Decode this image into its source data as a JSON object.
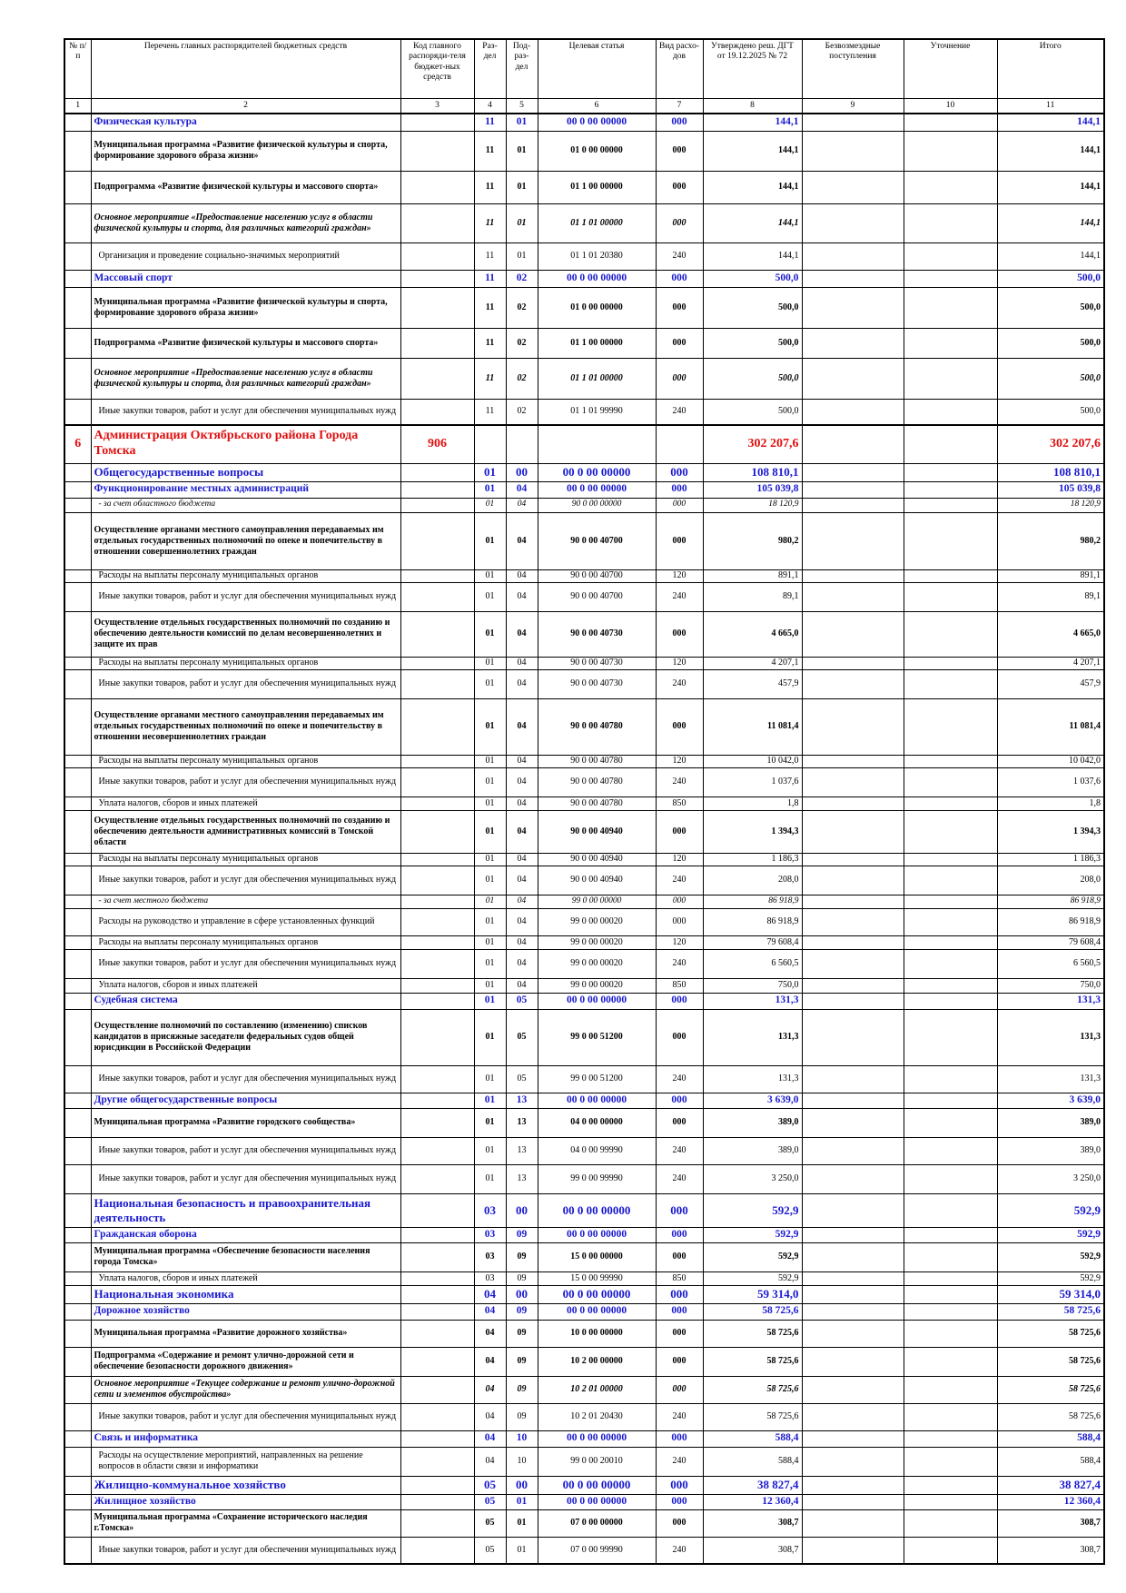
{
  "table": {
    "header": [
      "№ п/п",
      "Перечень главных распорядителей бюджетных средств",
      "Код главного распоряди-теля бюджет-ных средств",
      "Раз-дел",
      "Под-раз-дел",
      "Целевая статья",
      "Вид расхо-дов",
      "Утверждено реш. ДГТ от 19.12.2025 № 72",
      "Безвозмездные поступления",
      "Уточнение",
      "Итого"
    ],
    "column_numbers": [
      1,
      2,
      3,
      4,
      5,
      6,
      7,
      8,
      9,
      10,
      11
    ],
    "rows": [
      {
        "style": "blue",
        "cells": [
          null,
          "Физическая культура",
          null,
          "11",
          "01",
          "00 0 00 00000",
          "000",
          "144,1",
          null,
          null,
          "144,1"
        ]
      },
      {
        "style": "bold",
        "cells": [
          null,
          "Муниципальная программа «Развитие физической культуры и спорта, формирование здорового образа жизни»",
          null,
          "11",
          "01",
          "01 0 00 00000",
          "000",
          "144,1",
          null,
          null,
          "144,1"
        ]
      },
      {
        "style": "bold",
        "cells": [
          null,
          "Подпрограмма «Развитие физической культуры и массового спорта»",
          null,
          "11",
          "01",
          "01 1 00 00000",
          "000",
          "144,1",
          null,
          null,
          "144,1"
        ]
      },
      {
        "style": "bolditalic",
        "cells": [
          null,
          "Основное мероприятие «Предоставление населению услуг в области физической культуры и спорта, для различных категорий граждан»",
          null,
          "11",
          "01",
          "01 1 01 00000",
          "000",
          "144,1",
          null,
          null,
          "144,1"
        ]
      },
      {
        "style": "normal",
        "cells": [
          null,
          "Организация и проведение социально-значимых мероприятий",
          null,
          "11",
          "01",
          "01 1 01 20380",
          "240",
          "144,1",
          null,
          null,
          "144,1"
        ]
      },
      {
        "style": "blue",
        "cells": [
          null,
          "Массовый спорт",
          null,
          "11",
          "02",
          "00 0 00 00000",
          "000",
          "500,0",
          null,
          null,
          "500,0"
        ]
      },
      {
        "style": "bold",
        "cells": [
          null,
          "Муниципальная программа «Развитие физической культуры и спорта, формирование здорового образа жизни»",
          null,
          "11",
          "02",
          "01 0 00 00000",
          "000",
          "500,0",
          null,
          null,
          "500,0"
        ]
      },
      {
        "style": "bold",
        "cells": [
          null,
          "Подпрограмма «Развитие физической культуры и массового спорта»",
          null,
          "11",
          "02",
          "01 1 00 00000",
          "000",
          "500,0",
          null,
          null,
          "500,0"
        ]
      },
      {
        "style": "bolditalic",
        "cells": [
          null,
          "Основное мероприятие «Предоставление населению услуг в области физической культуры и спорта, для различных категорий граждан»",
          null,
          "11",
          "02",
          "01 1 01 00000",
          "000",
          "500,0",
          null,
          null,
          "500,0"
        ]
      },
      {
        "style": "normal",
        "cells": [
          null,
          "Иные закупки товаров, работ и услуг для обеспечения муниципальных нужд",
          null,
          "11",
          "02",
          "01 1 01 99990",
          "240",
          "500,0",
          null,
          null,
          "500,0"
        ]
      },
      {
        "style": "red",
        "cells": [
          "6",
          "Администрация Октябрьского района Города Томска",
          "906",
          null,
          null,
          null,
          null,
          "302 207,6",
          null,
          null,
          "302 207,6"
        ]
      },
      {
        "style": "blue2",
        "cells": [
          null,
          "Общегосударственные вопросы",
          null,
          "01",
          "00",
          "00 0 00 00000",
          "000",
          "108 810,1",
          null,
          null,
          "108 810,1"
        ]
      },
      {
        "style": "blue",
        "cells": [
          null,
          "Функционирование местных администраций",
          null,
          "01",
          "04",
          "00 0 00 00000",
          "000",
          "105 039,8",
          null,
          null,
          "105 039,8"
        ]
      },
      {
        "style": "italic",
        "cells": [
          null,
          "- за счет областного бюджета",
          null,
          "01",
          "04",
          "90 0 00 00000",
          "000",
          "18 120,9",
          null,
          null,
          "18 120,9"
        ]
      },
      {
        "style": "bold",
        "cells": [
          null,
          "Осуществление органами местного самоуправления передаваемых им отдельных государственных полномочий по опеке и попечительству в отношении совершеннолетних граждан",
          null,
          "01",
          "04",
          "90 0 00 40700",
          "000",
          "980,2",
          null,
          null,
          "980,2"
        ]
      },
      {
        "style": "normal",
        "cells": [
          null,
          "Расходы на выплаты персоналу муниципальных органов",
          null,
          "01",
          "04",
          "90 0 00 40700",
          "120",
          "891,1",
          null,
          null,
          "891,1"
        ]
      },
      {
        "style": "normal",
        "cells": [
          null,
          "Иные закупки товаров, работ и услуг для обеспечения муниципальных нужд",
          null,
          "01",
          "04",
          "90 0 00 40700",
          "240",
          "89,1",
          null,
          null,
          "89,1"
        ]
      },
      {
        "style": "bold",
        "cells": [
          null,
          "Осуществление отдельных государственных полномочий по созданию и обеспечению деятельности комиссий по делам несовершеннолетних и защите их прав",
          null,
          "01",
          "04",
          "90 0 00 40730",
          "000",
          "4 665,0",
          null,
          null,
          "4 665,0"
        ]
      },
      {
        "style": "normal",
        "cells": [
          null,
          "Расходы на выплаты персоналу муниципальных органов",
          null,
          "01",
          "04",
          "90 0 00 40730",
          "120",
          "4 207,1",
          null,
          null,
          "4 207,1"
        ]
      },
      {
        "style": "normal",
        "cells": [
          null,
          "Иные закупки товаров, работ и услуг для обеспечения муниципальных нужд",
          null,
          "01",
          "04",
          "90 0 00 40730",
          "240",
          "457,9",
          null,
          null,
          "457,9"
        ]
      },
      {
        "style": "bold",
        "cells": [
          null,
          "Осуществление органами местного самоуправления передаваемых им отдельных государственных полномочий по опеке и попечительству в отношении несовершеннолетних граждан",
          null,
          "01",
          "04",
          "90 0 00 40780",
          "000",
          "11 081,4",
          null,
          null,
          "11 081,4"
        ]
      },
      {
        "style": "normal",
        "cells": [
          null,
          "Расходы на выплаты персоналу муниципальных органов",
          null,
          "01",
          "04",
          "90 0 00 40780",
          "120",
          "10 042,0",
          null,
          null,
          "10 042,0"
        ]
      },
      {
        "style": "normal",
        "cells": [
          null,
          "Иные закупки товаров, работ и услуг для обеспечения муниципальных нужд",
          null,
          "01",
          "04",
          "90 0 00 40780",
          "240",
          "1 037,6",
          null,
          null,
          "1 037,6"
        ]
      },
      {
        "style": "normal",
        "cells": [
          null,
          "Уплата налогов, сборов и иных платежей",
          null,
          "01",
          "04",
          "90 0 00 40780",
          "850",
          "1,8",
          null,
          null,
          "1,8"
        ]
      },
      {
        "style": "bold",
        "cells": [
          null,
          "Осуществление отдельных государственных полномочий по созданию и обеспечению деятельности административных комиссий в Томской области",
          null,
          "01",
          "04",
          "90 0 00 40940",
          "000",
          "1 394,3",
          null,
          null,
          "1 394,3"
        ]
      },
      {
        "style": "normal",
        "cells": [
          null,
          "Расходы на выплаты персоналу муниципальных органов",
          null,
          "01",
          "04",
          "90 0 00 40940",
          "120",
          "1 186,3",
          null,
          null,
          "1 186,3"
        ]
      },
      {
        "style": "normal",
        "cells": [
          null,
          "Иные закупки товаров, работ и услуг для обеспечения муниципальных нужд",
          null,
          "01",
          "04",
          "90 0 00 40940",
          "240",
          "208,0",
          null,
          null,
          "208,0"
        ]
      },
      {
        "style": "italic",
        "cells": [
          null,
          "- за счет местного бюджета",
          null,
          "01",
          "04",
          "99 0 00 00000",
          "000",
          "86 918,9",
          null,
          null,
          "86 918,9"
        ]
      },
      {
        "style": "normal",
        "cells": [
          null,
          "Расходы на руководство и управление в сфере установленных функций",
          null,
          "01",
          "04",
          "99 0 00 00020",
          "000",
          "86 918,9",
          null,
          null,
          "86 918,9"
        ]
      },
      {
        "style": "normal",
        "cells": [
          null,
          "Расходы на выплаты персоналу муниципальных органов",
          null,
          "01",
          "04",
          "99 0 00 00020",
          "120",
          "79 608,4",
          null,
          null,
          "79 608,4"
        ]
      },
      {
        "style": "normal",
        "cells": [
          null,
          "Иные закупки товаров, работ и услуг для обеспечения муниципальных нужд",
          null,
          "01",
          "04",
          "99 0 00 00020",
          "240",
          "6 560,5",
          null,
          null,
          "6 560,5"
        ]
      },
      {
        "style": "normal",
        "cells": [
          null,
          "Уплата налогов, сборов и иных платежей",
          null,
          "01",
          "04",
          "99 0 00 00020",
          "850",
          "750,0",
          null,
          null,
          "750,0"
        ]
      },
      {
        "style": "blue",
        "cells": [
          null,
          "Судебная система",
          null,
          "01",
          "05",
          "00 0 00 00000",
          "000",
          "131,3",
          null,
          null,
          "131,3"
        ]
      },
      {
        "style": "bold",
        "cells": [
          null,
          "Осуществление полномочий по составлению (изменению) списков кандидатов в присяжные заседатели федеральных судов общей юрисдикции в Российской Федерации",
          null,
          "01",
          "05",
          "99 0 00 51200",
          "000",
          "131,3",
          null,
          null,
          "131,3"
        ]
      },
      {
        "style": "normal",
        "cells": [
          null,
          "Иные закупки товаров, работ и услуг для обеспечения муниципальных нужд",
          null,
          "01",
          "05",
          "99 0 00 51200",
          "240",
          "131,3",
          null,
          null,
          "131,3"
        ]
      },
      {
        "style": "blue",
        "cells": [
          null,
          "Другие общегосударственные вопросы",
          null,
          "01",
          "13",
          "00 0 00 00000",
          "000",
          "3 639,0",
          null,
          null,
          "3 639,0"
        ]
      },
      {
        "style": "bold",
        "cells": [
          null,
          "Муниципальная программа «Развитие городского сообщества»",
          null,
          "01",
          "13",
          "04 0 00 00000",
          "000",
          "389,0",
          null,
          null,
          "389,0"
        ]
      },
      {
        "style": "normal",
        "cells": [
          null,
          "Иные закупки товаров, работ и услуг для обеспечения муниципальных нужд",
          null,
          "01",
          "13",
          "04 0 00 99990",
          "240",
          "389,0",
          null,
          null,
          "389,0"
        ]
      },
      {
        "style": "normal",
        "cells": [
          null,
          "Иные закупки товаров, работ и услуг для обеспечения муниципальных нужд",
          null,
          "01",
          "13",
          "99 0 00 99990",
          "240",
          "3 250,0",
          null,
          null,
          "3 250,0"
        ]
      },
      {
        "style": "blue2",
        "cells": [
          null,
          "Национальная безопасность и правоохранительная деятельность",
          null,
          "03",
          "00",
          "00 0 00 00000",
          "000",
          "592,9",
          null,
          null,
          "592,9"
        ]
      },
      {
        "style": "blue",
        "cells": [
          null,
          "Гражданская оборона",
          null,
          "03",
          "09",
          "00 0 00 00000",
          "000",
          "592,9",
          null,
          null,
          "592,9"
        ]
      },
      {
        "style": "bold",
        "cells": [
          null,
          "Муниципальная программа «Обеспечение безопасности населения города Томска»",
          null,
          "03",
          "09",
          "15 0 00 00000",
          "000",
          "592,9",
          null,
          null,
          "592,9"
        ]
      },
      {
        "style": "normal",
        "cells": [
          null,
          "Уплата налогов, сборов и иных платежей",
          null,
          "03",
          "09",
          "15 0 00 99990",
          "850",
          "592,9",
          null,
          null,
          "592,9"
        ]
      },
      {
        "style": "blue2",
        "cells": [
          null,
          "Национальная экономика",
          null,
          "04",
          "00",
          "00 0 00 00000",
          "000",
          "59 314,0",
          null,
          null,
          "59 314,0"
        ]
      },
      {
        "style": "blue",
        "cells": [
          null,
          "Дорожное хозяйство",
          null,
          "04",
          "09",
          "00 0 00 00000",
          "000",
          "58 725,6",
          null,
          null,
          "58 725,6"
        ]
      },
      {
        "style": "bold",
        "cells": [
          null,
          "Муниципальная программа «Развитие дорожного хозяйства»",
          null,
          "04",
          "09",
          "10 0 00 00000",
          "000",
          "58 725,6",
          null,
          null,
          "58 725,6"
        ]
      },
      {
        "style": "bold",
        "cells": [
          null,
          "Подпрограмма «Содержание и ремонт улично-дорожной сети и обеспечение безопасности дорожного движения»",
          null,
          "04",
          "09",
          "10 2 00 00000",
          "000",
          "58 725,6",
          null,
          null,
          "58 725,6"
        ]
      },
      {
        "style": "bolditalic",
        "cells": [
          null,
          "Основное мероприятие «Текущее содержание и ремонт улично-дорожной сети и элементов обустройства»",
          null,
          "04",
          "09",
          "10 2 01 00000",
          "000",
          "58 725,6",
          null,
          null,
          "58 725,6"
        ]
      },
      {
        "style": "normal",
        "cells": [
          null,
          "Иные закупки товаров, работ и услуг для обеспечения муниципальных нужд",
          null,
          "04",
          "09",
          "10 2 01 20430",
          "240",
          "58 725,6",
          null,
          null,
          "58 725,6"
        ]
      },
      {
        "style": "blue",
        "cells": [
          null,
          "Связь и информатика",
          null,
          "04",
          "10",
          "00 0 00 00000",
          "000",
          "588,4",
          null,
          null,
          "588,4"
        ]
      },
      {
        "style": "normal",
        "cells": [
          null,
          "Расходы на осуществление мероприятий, направленных на решение вопросов в области связи и информатики",
          null,
          "04",
          "10",
          "99 0 00 20010",
          "240",
          "588,4",
          null,
          null,
          "588,4"
        ]
      },
      {
        "style": "blue2",
        "cells": [
          null,
          "Жилищно-коммунальное хозяйство",
          null,
          "05",
          "00",
          "00 0 00 00000",
          "000",
          "38 827,4",
          null,
          null,
          "38 827,4"
        ]
      },
      {
        "style": "blue",
        "cells": [
          null,
          "Жилищное хозяйство",
          null,
          "05",
          "01",
          "00 0 00 00000",
          "000",
          "12 360,4",
          null,
          null,
          "12 360,4"
        ]
      },
      {
        "style": "bold",
        "cells": [
          null,
          "Муниципальная программа «Сохранение исторического наследия г.Томска»",
          null,
          "05",
          "01",
          "07 0 00 00000",
          "000",
          "308,7",
          null,
          null,
          "308,7"
        ]
      },
      {
        "style": "normal",
        "cells": [
          null,
          "Иные закупки товаров, работ и услуг для обеспечения муниципальных нужд",
          null,
          "05",
          "01",
          "07 0 00 99990",
          "240",
          "308,7",
          null,
          null,
          "308,7"
        ]
      }
    ]
  }
}
